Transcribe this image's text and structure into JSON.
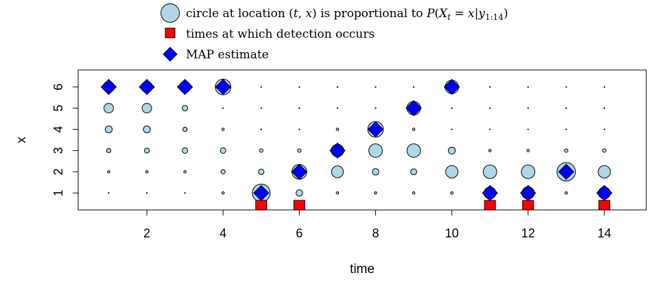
{
  "legend": {
    "items": [
      {
        "marker": "circle",
        "text": "circle at location (t, x) is proportional to  P(X_t = x|y_1:14)"
      },
      {
        "marker": "square",
        "text": "times at which detection occurs"
      },
      {
        "marker": "diamond",
        "text": "MAP estimate"
      }
    ]
  },
  "chart_data": {
    "type": "scatter",
    "xlabel": "time",
    "ylabel": "x",
    "xlim": [
      0.2,
      15.1
    ],
    "ylim": [
      0.2,
      6.8
    ],
    "xticks": [
      2,
      4,
      6,
      8,
      10,
      12,
      14
    ],
    "yticks": [
      1,
      2,
      3,
      4,
      5,
      6
    ],
    "grid": false,
    "legend_position": "top",
    "colors": {
      "circle_fill": "#add8e6",
      "detection_fill": "#ff0000",
      "map_fill": "#0000ff",
      "outline": "#000000"
    },
    "posterior_probabilities": {
      "times": [
        1,
        2,
        3,
        4,
        5,
        6,
        7,
        8,
        9,
        10,
        11,
        12,
        13,
        14
      ],
      "states": [
        1,
        2,
        3,
        4,
        5,
        6
      ],
      "values": [
        [
          0.0,
          0.01,
          0.03,
          0.08,
          0.15,
          0.2
        ],
        [
          0.0,
          0.01,
          0.04,
          0.08,
          0.15,
          0.2
        ],
        [
          0.0,
          0.01,
          0.05,
          0.03,
          0.05,
          0.2
        ],
        [
          0.01,
          0.03,
          0.05,
          0.01,
          0.0,
          0.4
        ],
        [
          0.52,
          0.05,
          0.02,
          0.0,
          0.0,
          0.0
        ],
        [
          0.07,
          0.36,
          0.02,
          0.0,
          0.0,
          0.0
        ],
        [
          0.01,
          0.23,
          0.26,
          0.01,
          0.0,
          0.0
        ],
        [
          0.01,
          0.07,
          0.3,
          0.4,
          0.0,
          0.0
        ],
        [
          0.01,
          0.06,
          0.3,
          0.01,
          0.3,
          0.0
        ],
        [
          0.01,
          0.25,
          0.08,
          0.0,
          0.0,
          0.3
        ],
        [
          0.23,
          0.3,
          0.01,
          0.0,
          0.0,
          0.0
        ],
        [
          0.25,
          0.3,
          0.01,
          0.0,
          0.0,
          0.0
        ],
        [
          0.01,
          0.56,
          0.02,
          0.0,
          0.0,
          0.0
        ],
        [
          0.23,
          0.25,
          0.02,
          0.0,
          0.0,
          0.0
        ]
      ]
    },
    "detection_times": [
      5,
      6,
      11,
      12,
      14
    ],
    "map_estimate": {
      "t": [
        1,
        2,
        3,
        4,
        5,
        6,
        7,
        8,
        9,
        10,
        11,
        12,
        13,
        14
      ],
      "x": [
        6,
        6,
        6,
        6,
        1,
        2,
        3,
        4,
        5,
        6,
        1,
        1,
        2,
        1
      ]
    }
  }
}
